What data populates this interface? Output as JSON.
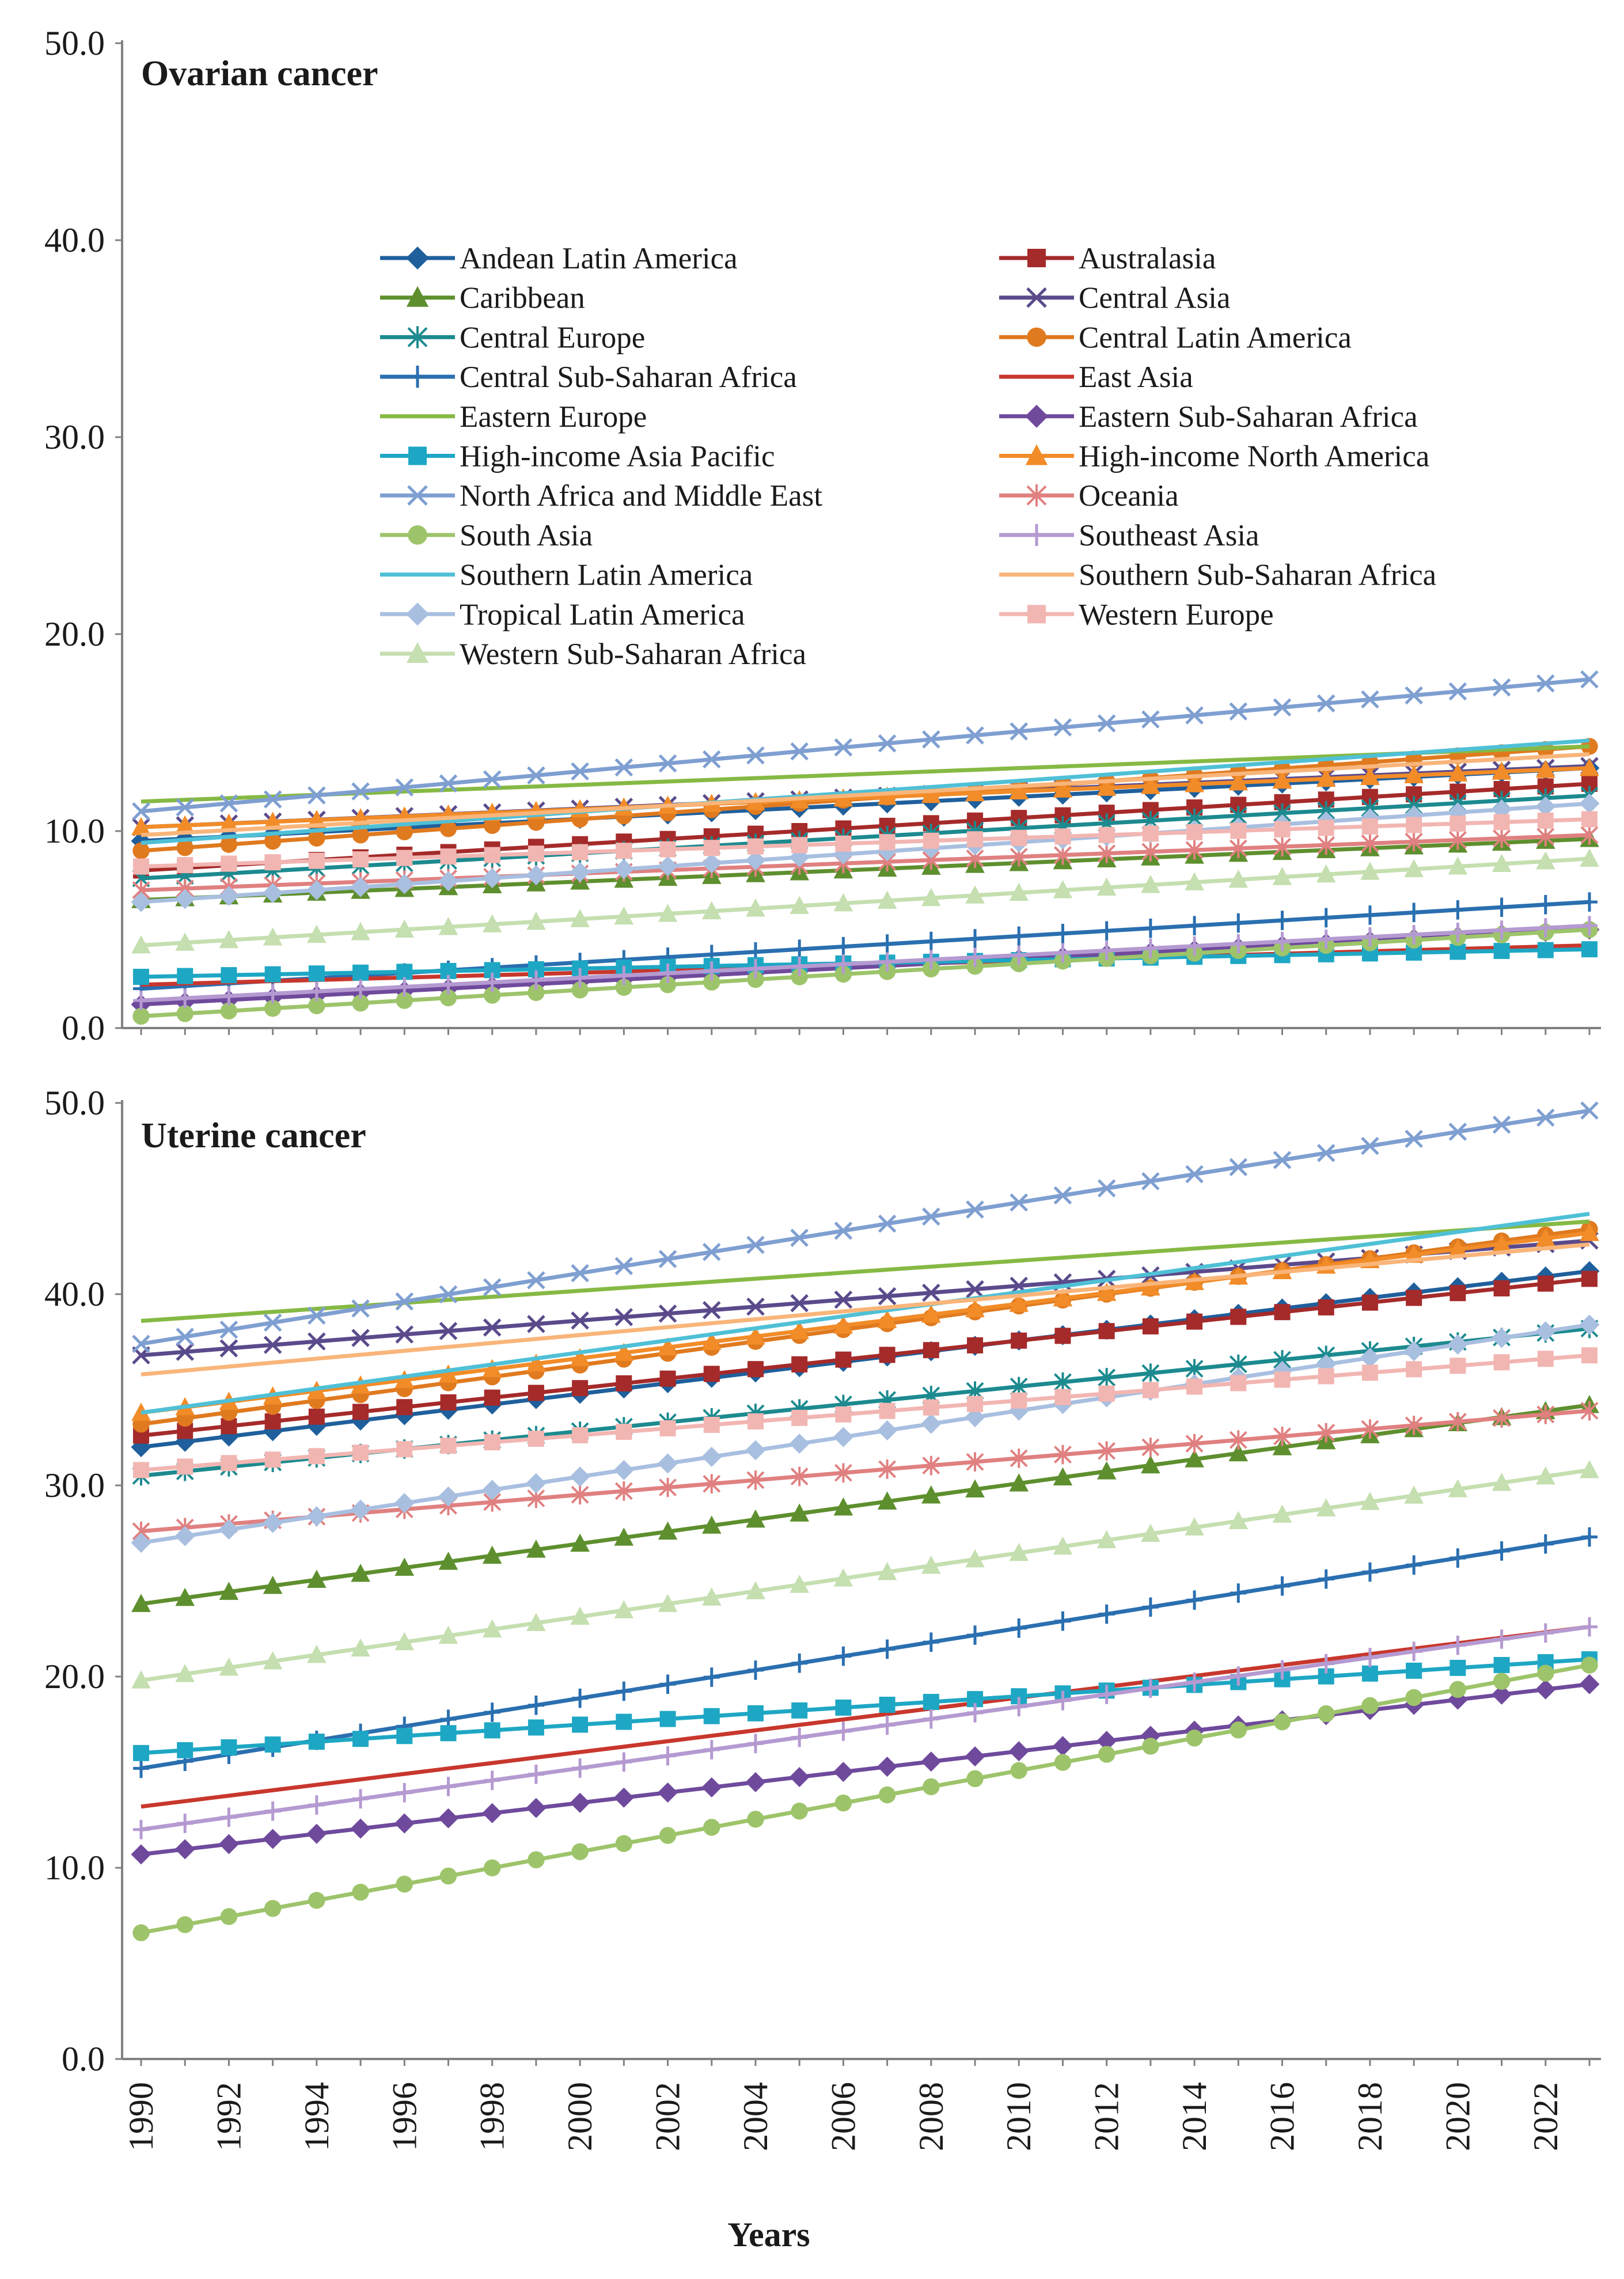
{
  "chart_data": [
    {
      "type": "line",
      "title": "Ovarian cancer",
      "xlabel": "Years",
      "ylabel": "",
      "ylim": [
        0,
        50
      ],
      "yticks": [
        "0.0",
        "10.0",
        "20.0",
        "30.0",
        "40.0",
        "50.0"
      ],
      "xlim": [
        1990,
        2023
      ],
      "xticks": [
        "1990",
        "1992",
        "1994",
        "1996",
        "1998",
        "2000",
        "2002",
        "2004",
        "2006",
        "2008",
        "2010",
        "2012",
        "2014",
        "2016",
        "2018",
        "2020",
        "2022"
      ],
      "legend_position": "upper-center",
      "series": [
        {
          "name": "Andean Latin America",
          "start": 9.5,
          "end": 13.2
        },
        {
          "name": "Australasia",
          "start": 8.0,
          "end": 12.4
        },
        {
          "name": "Caribbean",
          "start": 6.5,
          "end": 9.6
        },
        {
          "name": "Central Asia",
          "start": 10.2,
          "end": 13.3
        },
        {
          "name": "Central Europe",
          "start": 7.6,
          "end": 11.8
        },
        {
          "name": "Central Latin America",
          "start": 9.0,
          "end": 14.3
        },
        {
          "name": "Central Sub-Saharan Africa",
          "start": 2.0,
          "end": 6.4
        },
        {
          "name": "East Asia",
          "start": 2.2,
          "end": 4.2
        },
        {
          "name": "Eastern Europe",
          "start": 11.5,
          "end": 14.3
        },
        {
          "name": "Eastern Sub-Saharan Africa",
          "start": 1.2,
          "end": 5.0
        },
        {
          "name": "High-income Asia Pacific",
          "start": 2.6,
          "end": 4.0
        },
        {
          "name": "High-income North America",
          "start": 10.2,
          "end": 13.2
        },
        {
          "name": "North Africa and Middle East",
          "start": 11.0,
          "end": 17.7
        },
        {
          "name": "Oceania",
          "start": 7.0,
          "end": 9.8
        },
        {
          "name": "South Asia",
          "start": 0.6,
          "end": 5.0
        },
        {
          "name": "Southeast Asia",
          "start": 1.4,
          "end": 5.2
        },
        {
          "name": "Southern Latin America",
          "start": 9.4,
          "end": 14.6
        },
        {
          "name": "Southern Sub-Saharan Africa",
          "start": 9.8,
          "end": 13.9
        },
        {
          "name": "Tropical Latin America",
          "start": 6.4,
          "end": 11.4
        },
        {
          "name": "Western Europe",
          "start": 8.2,
          "end": 10.6
        },
        {
          "name": "Western Sub-Saharan Africa",
          "start": 4.2,
          "end": 8.6
        }
      ]
    },
    {
      "type": "line",
      "title": "Uterine  cancer",
      "xlabel": "Years",
      "ylabel": "",
      "ylim": [
        0,
        50
      ],
      "yticks": [
        "0.0",
        "10.0",
        "20.0",
        "30.0",
        "40.0",
        "50.0"
      ],
      "xlim": [
        1990,
        2023
      ],
      "xticks": [
        "1990",
        "1992",
        "1994",
        "1996",
        "1998",
        "2000",
        "2002",
        "2004",
        "2006",
        "2008",
        "2010",
        "2012",
        "2014",
        "2016",
        "2018",
        "2020",
        "2022"
      ],
      "series": [
        {
          "name": "Andean Latin America",
          "start": 32.0,
          "end": 41.2
        },
        {
          "name": "Australasia",
          "start": 32.6,
          "end": 40.8
        },
        {
          "name": "Caribbean",
          "start": 23.8,
          "end": 34.2
        },
        {
          "name": "Central Asia",
          "start": 36.8,
          "end": 42.8
        },
        {
          "name": "Central Europe",
          "start": 30.5,
          "end": 38.2
        },
        {
          "name": "Central Latin America",
          "start": 33.2,
          "end": 43.4
        },
        {
          "name": "Central Sub-Saharan Africa",
          "start": 15.2,
          "end": 27.3
        },
        {
          "name": "East Asia",
          "start": 13.2,
          "end": 22.6
        },
        {
          "name": "Eastern Europe",
          "start": 38.6,
          "end": 43.8
        },
        {
          "name": "Eastern Sub-Saharan Africa",
          "start": 10.7,
          "end": 19.6
        },
        {
          "name": "High-income Asia Pacific",
          "start": 16.0,
          "end": 20.9
        },
        {
          "name": "High-income North America",
          "start": 33.8,
          "end": 43.2
        },
        {
          "name": "North Africa and Middle East",
          "start": 37.4,
          "end": 49.6
        },
        {
          "name": "Oceania",
          "start": 27.6,
          "end": 33.9
        },
        {
          "name": "South Asia",
          "start": 6.6,
          "end": 20.6
        },
        {
          "name": "Southeast Asia",
          "start": 12.0,
          "end": 22.6
        },
        {
          "name": "Southern Latin America",
          "start": 33.8,
          "end": 44.2
        },
        {
          "name": "Southern Sub-Saharan Africa",
          "start": 35.8,
          "end": 42.6
        },
        {
          "name": "Tropical Latin America",
          "start": 27.0,
          "end": 38.4
        },
        {
          "name": "Western Europe",
          "start": 30.8,
          "end": 36.8
        },
        {
          "name": "Western Sub-Saharan Africa",
          "start": 19.8,
          "end": 30.8
        }
      ]
    }
  ],
  "styles": [
    {
      "color": "#1f5f9c",
      "marker": "diamond"
    },
    {
      "color": "#a52a2a",
      "marker": "square"
    },
    {
      "color": "#5e8f2e",
      "marker": "triangle"
    },
    {
      "color": "#5b4a8b",
      "marker": "x"
    },
    {
      "color": "#1c8a8f",
      "marker": "star"
    },
    {
      "color": "#e07a1f",
      "marker": "circle"
    },
    {
      "color": "#2a6fb0",
      "marker": "plus"
    },
    {
      "color": "#c8372d",
      "marker": "none"
    },
    {
      "color": "#86b944",
      "marker": "none"
    },
    {
      "color": "#6f4a9c",
      "marker": "diamond"
    },
    {
      "color": "#1ea7c4",
      "marker": "square"
    },
    {
      "color": "#f28c28",
      "marker": "triangle"
    },
    {
      "color": "#7f9fd1",
      "marker": "x"
    },
    {
      "color": "#e08080",
      "marker": "star"
    },
    {
      "color": "#9dc46a",
      "marker": "circle"
    },
    {
      "color": "#b59ad1",
      "marker": "plus"
    },
    {
      "color": "#4fc0d6",
      "marker": "none"
    },
    {
      "color": "#f9b57a",
      "marker": "none"
    },
    {
      "color": "#a8bfe0",
      "marker": "diamond"
    },
    {
      "color": "#f2b6b2",
      "marker": "square"
    },
    {
      "color": "#c5dfb0",
      "marker": "triangle"
    }
  ]
}
